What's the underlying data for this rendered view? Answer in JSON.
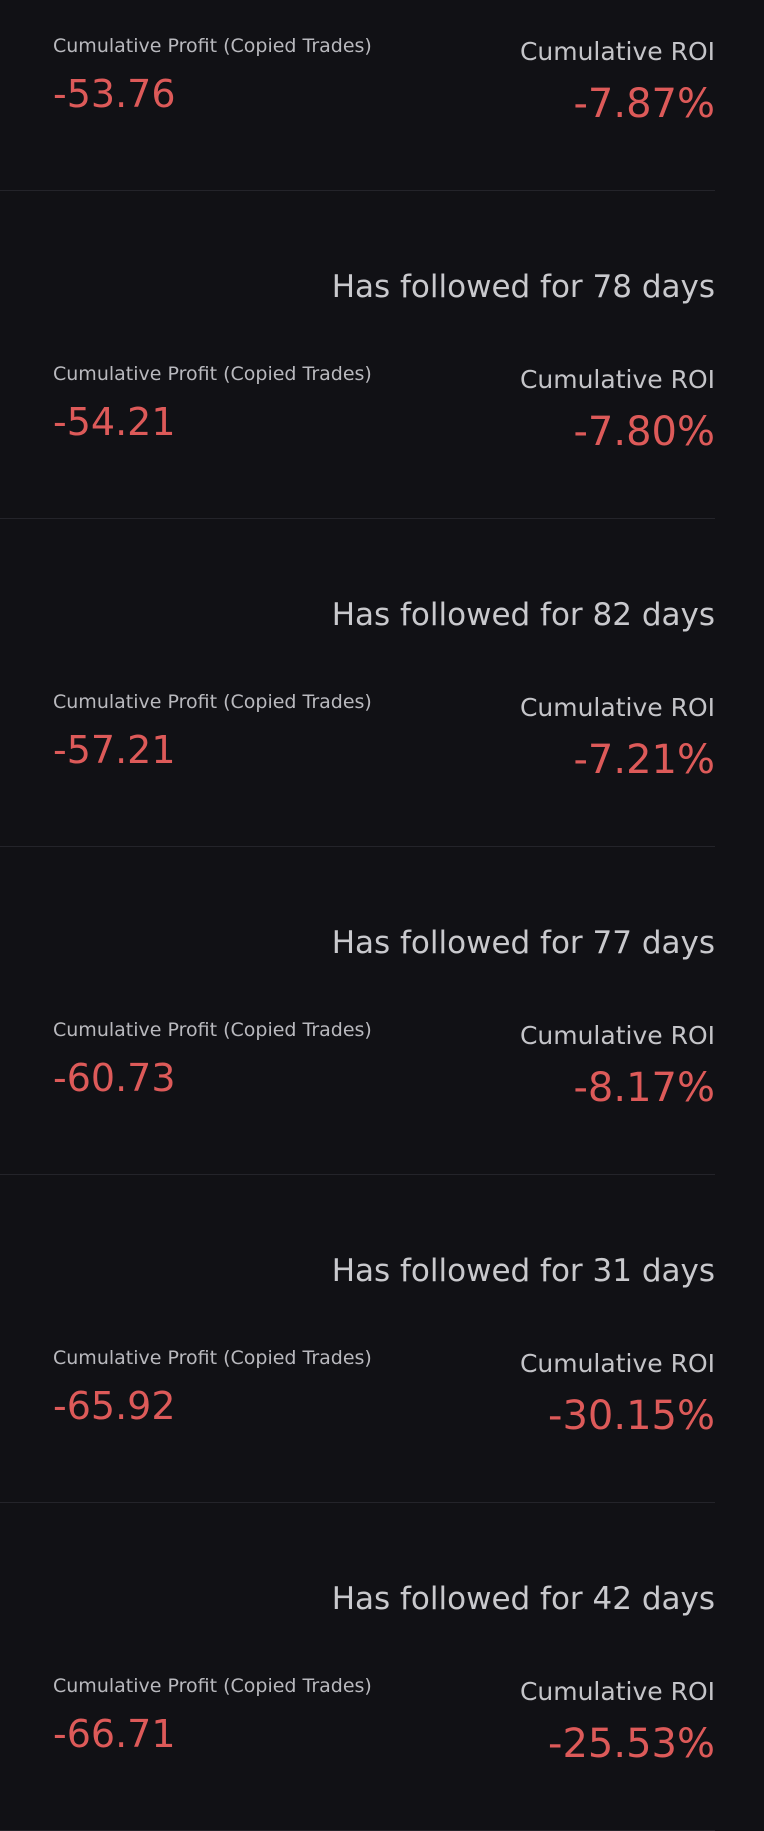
{
  "labels": {
    "profit": "Cumulative Profit (Copied Trades)",
    "roi": "Cumulative ROI"
  },
  "colors": {
    "background": "#111115",
    "negative": "#dd5a59",
    "text": "#c9c9cd"
  },
  "items": [
    {
      "followed": "",
      "profit": "-53.76",
      "roi": "-7.87%"
    },
    {
      "followed": "Has followed for 78 days",
      "profit": "-54.21",
      "roi": "-7.80%"
    },
    {
      "followed": "Has followed for 82 days",
      "profit": "-57.21",
      "roi": "-7.21%"
    },
    {
      "followed": "Has followed for 77 days",
      "profit": "-60.73",
      "roi": "-8.17%"
    },
    {
      "followed": "Has followed for 31 days",
      "profit": "-65.92",
      "roi": "-30.15%"
    },
    {
      "followed": "Has followed for 42 days",
      "profit": "-66.71",
      "roi": "-25.53%"
    }
  ]
}
